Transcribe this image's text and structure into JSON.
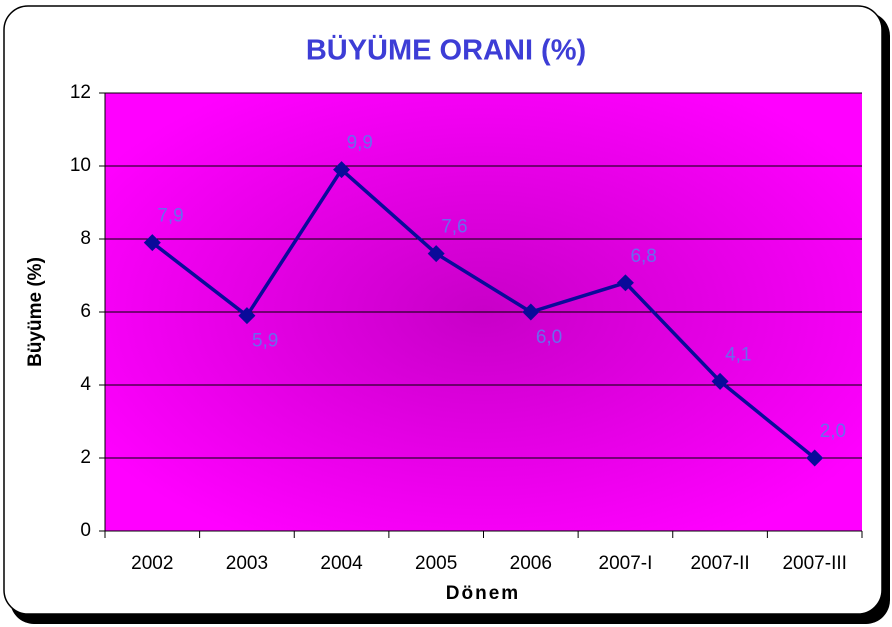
{
  "chart_data": {
    "type": "line",
    "title": "BÜYÜME ORANI (%)",
    "x_label": "Dönem",
    "y_label": "Büyüme (%)",
    "categories": [
      "2002",
      "2003",
      "2004",
      "2005",
      "2006",
      "2007-I",
      "2007-II",
      "2007-III"
    ],
    "series": [
      {
        "name": "Büyüme",
        "color": "#0a0a9a",
        "values": [
          7.9,
          5.9,
          9.9,
          7.6,
          6.0,
          6.8,
          4.1,
          2.0
        ],
        "value_labels": [
          "7,9",
          "5,9",
          "9,9",
          "7,6",
          "6,0",
          "6,8",
          "4,1",
          "2,0"
        ]
      }
    ],
    "ylim": [
      0,
      12
    ],
    "yticks": [
      0,
      2,
      4,
      6,
      8,
      10,
      12
    ],
    "grid": true,
    "plot_background": "#ff00ff"
  }
}
